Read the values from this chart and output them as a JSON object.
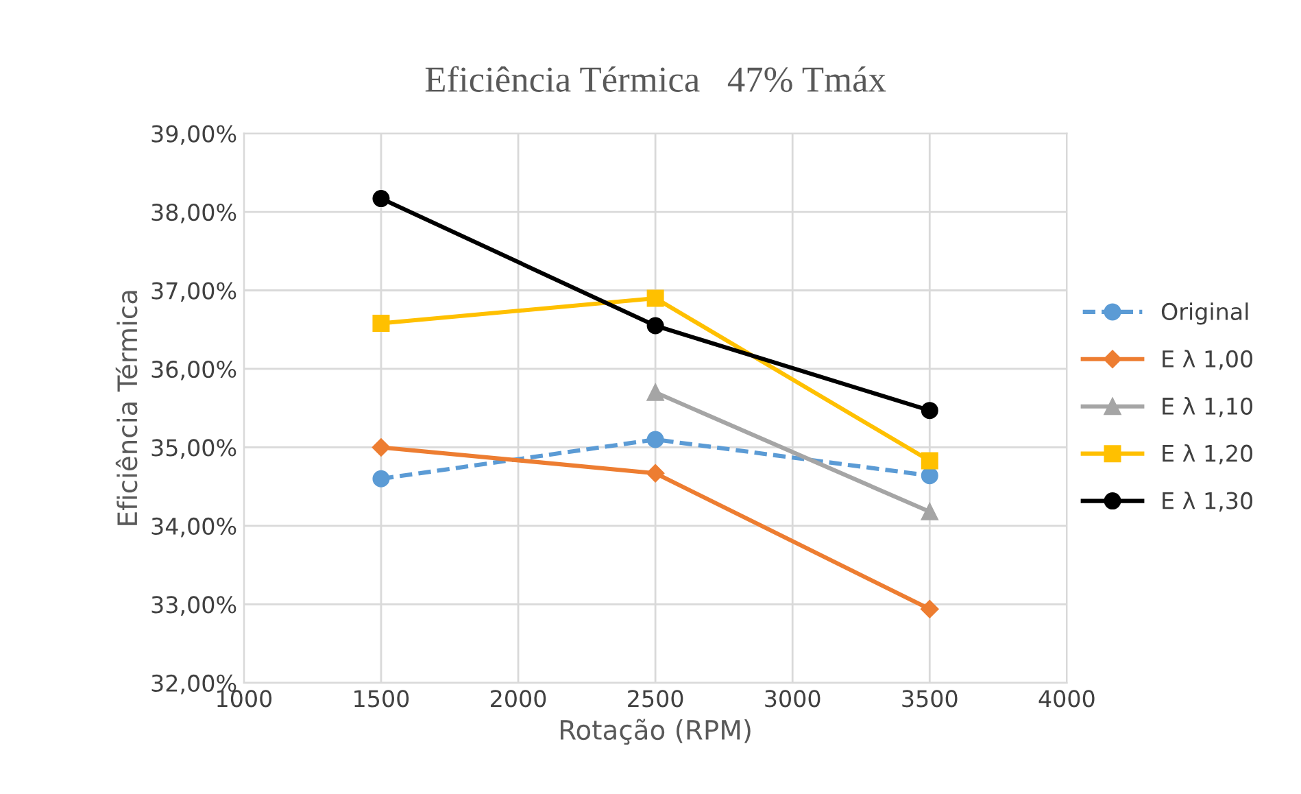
{
  "chart_data": {
    "type": "line",
    "title": "Eficiência Térmica   47% Tmáx",
    "xlabel": "Rotação (RPM)",
    "ylabel": "Eficiência Térmica",
    "xlim": [
      1000,
      4000
    ],
    "xticks": [
      1000,
      1500,
      2000,
      2500,
      3000,
      3500,
      4000
    ],
    "ylim": [
      32,
      39
    ],
    "yticks": [
      {
        "value": 32,
        "label": "32,00%"
      },
      {
        "value": 33,
        "label": "33,00%"
      },
      {
        "value": 34,
        "label": "34,00%"
      },
      {
        "value": 35,
        "label": "35,00%"
      },
      {
        "value": 36,
        "label": "36,00%"
      },
      {
        "value": 37,
        "label": "37,00%"
      },
      {
        "value": 38,
        "label": "38,00%"
      },
      {
        "value": 39,
        "label": "39,00%"
      }
    ],
    "grid": true,
    "legend": "right",
    "series": [
      {
        "name": "Original",
        "color": "#5b9bd5",
        "marker": "circle",
        "line_style": "dashed",
        "x": [
          1500,
          2500,
          3500
        ],
        "values": [
          34.6,
          35.1,
          34.64
        ]
      },
      {
        "name": "E λ 1,00",
        "color": "#ed7d31",
        "marker": "diamond",
        "line_style": "solid",
        "x": [
          1500,
          2500,
          3500
        ],
        "values": [
          35.0,
          34.67,
          32.94
        ]
      },
      {
        "name": "E λ 1,10",
        "color": "#a5a5a5",
        "marker": "triangle",
        "line_style": "solid",
        "x": [
          2500,
          3500
        ],
        "values": [
          35.7,
          34.18
        ]
      },
      {
        "name": "E λ 1,20",
        "color": "#ffc000",
        "marker": "square",
        "line_style": "solid",
        "x": [
          1500,
          2500,
          3500
        ],
        "values": [
          36.58,
          36.9,
          34.83
        ]
      },
      {
        "name": "E λ 1,30",
        "color": "#000000",
        "marker": "circle",
        "line_style": "solid",
        "x": [
          1500,
          2500,
          3500
        ],
        "values": [
          38.17,
          36.55,
          35.47
        ]
      }
    ]
  }
}
